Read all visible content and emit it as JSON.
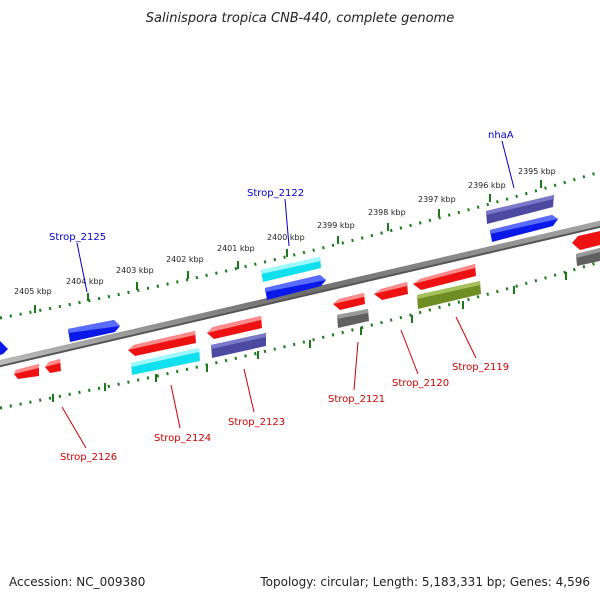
{
  "title": "Salinispora tropica CNB-440, complete genome",
  "footer": {
    "accession": "Accession: NC_009380",
    "topology": "Topology: circular; Length: 5,183,331 bp; Genes: 4,596"
  },
  "scale_labels": [
    "2405 kbp",
    "2404 kbp",
    "2403 kbp",
    "2402 kbp",
    "2401 kbp",
    "2400 kbp",
    "2399 kbp",
    "2398 kbp",
    "2397 kbp",
    "2396 kbp",
    "2395 kbp"
  ],
  "gene_labels": {
    "nhaA": "nhaA",
    "strop_2122": "Strop_2122",
    "strop_2125": "Strop_2125",
    "strop_2126": "Strop_2126",
    "strop_2124": "Strop_2124",
    "strop_2123": "Strop_2123",
    "strop_2121": "Strop_2121",
    "strop_2120": "Strop_2120",
    "strop_2119": "Strop_2119"
  },
  "colors": {
    "backbone": "#7a7a7a",
    "tick": "#1a7a1a",
    "label_forward": "#0000cc",
    "label_reverse": "#cc0000",
    "gene_red": "#ee1111",
    "gene_blue": "#0a18e8",
    "gene_cyan": "#10e0ee",
    "gene_purple": "#4b4aa0",
    "gene_gray": "#606060",
    "gene_olive": "#6e8e24"
  }
}
